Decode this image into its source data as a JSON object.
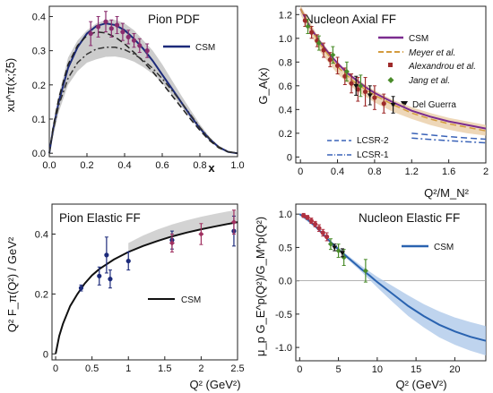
{
  "chart_data": [
    {
      "type": "line",
      "title": "Pion PDF",
      "xlabel": "x",
      "ylabel": "xu^π(x;ζ5)",
      "xlim": [
        0,
        1
      ],
      "ylim": [
        -0.01,
        0.43
      ],
      "xticks": [
        0,
        0.2,
        0.4,
        0.6,
        0.8,
        1.0
      ],
      "xtick_labels": [
        "0.0",
        "0.2",
        "0.4",
        "0.6",
        "0.8",
        "1.0"
      ],
      "yticks": [
        0,
        0.1,
        0.2,
        0.3,
        0.4
      ],
      "ytick_labels": [
        "0.0",
        "0.1",
        "0.2",
        "0.3",
        "0.4"
      ],
      "legend_position": "top-right",
      "legend": [
        {
          "name": "CSM",
          "color": "#1c2a7a",
          "style": "line"
        }
      ],
      "series": [
        {
          "name": "CSM",
          "color": "#1c2a7a",
          "style": "solid",
          "x": [
            0,
            0.02,
            0.05,
            0.1,
            0.15,
            0.2,
            0.25,
            0.3,
            0.35,
            0.4,
            0.45,
            0.5,
            0.55,
            0.6,
            0.65,
            0.7,
            0.75,
            0.8,
            0.85,
            0.9,
            0.95,
            1.0
          ],
          "y": [
            0,
            0.07,
            0.15,
            0.25,
            0.31,
            0.35,
            0.372,
            0.38,
            0.375,
            0.36,
            0.335,
            0.305,
            0.27,
            0.23,
            0.19,
            0.15,
            0.11,
            0.073,
            0.042,
            0.018,
            0.004,
            0
          ]
        },
        {
          "name": "",
          "color": "#222222",
          "style": "dashed",
          "x": [
            0,
            0.02,
            0.05,
            0.1,
            0.15,
            0.2,
            0.25,
            0.3,
            0.35,
            0.4,
            0.45,
            0.5,
            0.55,
            0.6,
            0.65,
            0.7,
            0.75,
            0.8,
            0.85,
            0.9,
            0.95,
            1.0
          ],
          "y": [
            0,
            0.075,
            0.16,
            0.26,
            0.315,
            0.345,
            0.355,
            0.352,
            0.34,
            0.32,
            0.295,
            0.268,
            0.238,
            0.205,
            0.17,
            0.135,
            0.1,
            0.067,
            0.038,
            0.016,
            0.004,
            0
          ]
        },
        {
          "name": "",
          "color": "#333333",
          "style": "dashdot",
          "x": [
            0,
            0.02,
            0.05,
            0.1,
            0.15,
            0.2,
            0.25,
            0.3,
            0.35,
            0.4,
            0.45,
            0.5,
            0.55,
            0.6,
            0.65,
            0.7,
            0.75,
            0.8,
            0.85,
            0.9,
            0.95,
            1.0
          ],
          "y": [
            0,
            0.065,
            0.14,
            0.22,
            0.265,
            0.29,
            0.305,
            0.31,
            0.31,
            0.303,
            0.29,
            0.272,
            0.248,
            0.218,
            0.185,
            0.15,
            0.113,
            0.076,
            0.044,
            0.019,
            0.005,
            0
          ]
        }
      ],
      "band": {
        "color": "#bbbbbb",
        "x": [
          0,
          0.05,
          0.1,
          0.15,
          0.2,
          0.25,
          0.3,
          0.35,
          0.4,
          0.45,
          0.5,
          0.55,
          0.6,
          0.65,
          0.7,
          0.75,
          0.8,
          0.85,
          0.9,
          0.95,
          1.0
        ],
        "lower": [
          0,
          0.12,
          0.2,
          0.24,
          0.265,
          0.275,
          0.282,
          0.283,
          0.278,
          0.268,
          0.252,
          0.232,
          0.205,
          0.172,
          0.138,
          0.102,
          0.067,
          0.037,
          0.015,
          0.003,
          0
        ],
        "upper": [
          0,
          0.17,
          0.28,
          0.33,
          0.36,
          0.38,
          0.39,
          0.39,
          0.38,
          0.36,
          0.33,
          0.3,
          0.26,
          0.215,
          0.17,
          0.127,
          0.085,
          0.049,
          0.021,
          0.005,
          0
        ]
      },
      "points": {
        "color": "#8a2c6e",
        "x": [
          0.22,
          0.26,
          0.3,
          0.33,
          0.36,
          0.39,
          0.42,
          0.45,
          0.48,
          0.52
        ],
        "y": [
          0.35,
          0.37,
          0.385,
          0.365,
          0.375,
          0.355,
          0.34,
          0.33,
          0.315,
          0.3
        ],
        "err": [
          0.035,
          0.03,
          0.03,
          0.025,
          0.025,
          0.025,
          0.02,
          0.02,
          0.02,
          0.02
        ]
      }
    },
    {
      "type": "line",
      "title": "Nucleon Axial FF",
      "xlabel": "Q²/M_N²",
      "ylabel": "G_A(x)",
      "xlim": [
        -0.05,
        2.0
      ],
      "ylim": [
        -0.05,
        1.27
      ],
      "xticks": [
        0,
        0.4,
        0.8,
        1.2,
        1.6,
        2.0
      ],
      "xtick_labels": [
        "0",
        "0.4",
        "0.8",
        "1.2",
        "1.6",
        "2"
      ],
      "yticks": [
        0,
        0.2,
        0.4,
        0.6,
        0.8,
        1.0,
        1.2
      ],
      "ytick_labels": [
        "0",
        "0.2",
        "0.4",
        "0.6",
        "0.8",
        "1.0",
        "1.2"
      ],
      "legend_position": "top-right",
      "legend": [
        {
          "name": "CSM",
          "color": "#7b2c8f",
          "style": "line"
        },
        {
          "name": "Meyer et al.",
          "color": "#d39b3e",
          "style": "dashed"
        },
        {
          "name": "Alexandrou et al.",
          "color": "#9e2a2a",
          "style": "square"
        },
        {
          "name": "Jang et al.",
          "color": "#4a8c2a",
          "style": "diamond"
        }
      ],
      "extra_labels": [
        "Del Guerra",
        "LCSR-2",
        "LCSR-1"
      ],
      "series": [
        {
          "name": "CSM",
          "color": "#7b2c8f",
          "style": "solid",
          "x": [
            0,
            0.1,
            0.2,
            0.3,
            0.4,
            0.5,
            0.6,
            0.7,
            0.8,
            0.9,
            1.0,
            1.2,
            1.4,
            1.6,
            1.8,
            2.0
          ],
          "y": [
            1.25,
            1.1,
            0.98,
            0.88,
            0.79,
            0.71,
            0.65,
            0.59,
            0.54,
            0.5,
            0.46,
            0.39,
            0.34,
            0.3,
            0.27,
            0.24
          ]
        },
        {
          "name": "Meyer et al.",
          "color": "#d39b3e",
          "style": "dashed",
          "x": [
            0,
            0.2,
            0.4,
            0.6,
            0.8,
            1.0,
            1.2,
            1.4,
            1.6,
            1.8,
            2.0
          ],
          "y": [
            1.25,
            0.96,
            0.76,
            0.62,
            0.52,
            0.44,
            0.37,
            0.32,
            0.28,
            0.25,
            0.22
          ]
        },
        {
          "name": "LCSR-2",
          "color": "#3a63b8",
          "style": "dashed",
          "x": [
            1.2,
            1.4,
            1.6,
            1.8,
            2.0
          ],
          "y": [
            0.2,
            0.185,
            0.172,
            0.16,
            0.15
          ]
        },
        {
          "name": "LCSR-1",
          "color": "#3a63b8",
          "style": "dashdot",
          "x": [
            1.2,
            1.4,
            1.6,
            1.8,
            2.0
          ],
          "y": [
            0.16,
            0.148,
            0.138,
            0.128,
            0.12
          ]
        }
      ],
      "band": {
        "color": "#e8c9a0",
        "x": [
          0,
          0.2,
          0.4,
          0.6,
          0.8,
          1.0,
          1.2,
          1.4,
          1.6,
          1.8,
          2.0
        ],
        "lower": [
          1.2,
          0.9,
          0.7,
          0.56,
          0.46,
          0.38,
          0.32,
          0.27,
          0.23,
          0.2,
          0.18
        ],
        "upper": [
          1.28,
          1.0,
          0.8,
          0.66,
          0.56,
          0.48,
          0.42,
          0.37,
          0.33,
          0.3,
          0.27
        ]
      },
      "points": {
        "color": "#9e2a2a",
        "x": [
          0.05,
          0.12,
          0.18,
          0.25,
          0.32,
          0.4,
          0.48,
          0.55,
          0.62,
          0.7,
          0.8,
          0.9
        ],
        "y": [
          1.15,
          1.05,
          0.98,
          0.9,
          0.82,
          0.77,
          0.68,
          0.62,
          0.57,
          0.55,
          0.5,
          0.45
        ],
        "err": [
          0.05,
          0.05,
          0.05,
          0.06,
          0.06,
          0.07,
          0.07,
          0.08,
          0.1,
          0.12,
          0.1,
          0.08
        ]
      },
      "points2": {
        "color": "#4a8c2a",
        "x": [
          0.08,
          0.2,
          0.35,
          0.5,
          0.65
        ],
        "y": [
          1.1,
          0.96,
          0.86,
          0.72,
          0.6
        ],
        "err": [
          0.06,
          0.06,
          0.07,
          0.08,
          0.09
        ]
      },
      "points3": {
        "color": "#111111",
        "x": [
          0.6,
          0.75,
          1.0
        ],
        "y": [
          0.6,
          0.52,
          0.44
        ],
        "err": [
          0.08,
          0.08,
          0.07
        ]
      }
    },
    {
      "type": "line",
      "title": "Pion Elastic FF",
      "xlabel": "Q² (GeV²)",
      "ylabel": "Q² F_π(Q²) / GeV²",
      "xlim": [
        -0.05,
        2.5
      ],
      "ylim": [
        -0.02,
        0.5
      ],
      "xticks": [
        0,
        0.5,
        1,
        1.5,
        2,
        2.5
      ],
      "xtick_labels": [
        "0",
        "0.5",
        "1",
        "1.5",
        "2",
        "2.5"
      ],
      "yticks": [
        0,
        0.2,
        0.4
      ],
      "ytick_labels": [
        "0",
        "0.2",
        "0.4"
      ],
      "legend_position": "center-right",
      "legend": [
        {
          "name": "CSM",
          "color": "#111111",
          "style": "line"
        }
      ],
      "series": [
        {
          "name": "CSM",
          "color": "#111111",
          "style": "solid",
          "x": [
            0,
            0.05,
            0.1,
            0.2,
            0.3,
            0.4,
            0.5,
            0.6,
            0.8,
            1.0,
            1.2,
            1.4,
            1.6,
            1.8,
            2.0,
            2.2,
            2.5
          ],
          "y": [
            0,
            0.06,
            0.1,
            0.16,
            0.2,
            0.235,
            0.262,
            0.283,
            0.315,
            0.34,
            0.36,
            0.377,
            0.392,
            0.405,
            0.416,
            0.426,
            0.44
          ]
        }
      ],
      "band": {
        "color": "#c4c4c4",
        "x": [
          1.0,
          1.2,
          1.4,
          1.6,
          1.8,
          2.0,
          2.2,
          2.4,
          2.5
        ],
        "lower": [
          0.34,
          0.36,
          0.377,
          0.392,
          0.405,
          0.416,
          0.426,
          0.435,
          0.44
        ],
        "upper": [
          0.37,
          0.395,
          0.415,
          0.432,
          0.446,
          0.458,
          0.468,
          0.477,
          0.481
        ]
      },
      "points": {
        "color": "#1c2a7a",
        "x": [
          0.35,
          0.6,
          0.7,
          0.75,
          1.0,
          1.6,
          2.45
        ],
        "y": [
          0.22,
          0.26,
          0.33,
          0.25,
          0.31,
          0.38,
          0.41
        ],
        "err": [
          0.01,
          0.03,
          0.06,
          0.03,
          0.03,
          0.03,
          0.05
        ]
      },
      "points2": {
        "color": "#a03060",
        "x": [
          1.6,
          2.0,
          2.45
        ],
        "y": [
          0.37,
          0.4,
          0.44
        ],
        "err": [
          0.03,
          0.035,
          0.04
        ]
      }
    },
    {
      "type": "line",
      "title": "Nucleon Elastic FF",
      "xlabel": "Q² (GeV²)",
      "ylabel": "μ_p G_E^p(Q²)/G_M^p(Q²)",
      "xlim": [
        -0.5,
        24
      ],
      "ylim": [
        -1.2,
        1.15
      ],
      "xticks": [
        0,
        5,
        10,
        15,
        20
      ],
      "xtick_labels": [
        "0",
        "5",
        "10",
        "15",
        "20"
      ],
      "yticks": [
        1.0,
        0.5,
        0,
        -0.5,
        -1.0
      ],
      "ytick_labels": [
        "1.0",
        "0.5",
        "0.0",
        "-0.5",
        "-1.0"
      ],
      "legend_position": "top-right",
      "legend": [
        {
          "name": "CSM",
          "color": "#2a63b0",
          "style": "line"
        }
      ],
      "series": [
        {
          "name": "CSM",
          "color": "#2a63b0",
          "style": "solid",
          "x": [
            0,
            1,
            2,
            3,
            4,
            5,
            6,
            7,
            8,
            9,
            10,
            12,
            14,
            16,
            18,
            20,
            22,
            24
          ],
          "y": [
            1.0,
            0.92,
            0.82,
            0.7,
            0.58,
            0.47,
            0.37,
            0.27,
            0.17,
            0.08,
            -0.02,
            -0.2,
            -0.38,
            -0.53,
            -0.66,
            -0.76,
            -0.84,
            -0.9
          ]
        }
      ],
      "band": {
        "color": "#a9c6e8",
        "x": [
          0,
          2,
          4,
          6,
          8,
          10,
          12,
          14,
          16,
          18,
          20,
          22,
          24
        ],
        "lower": [
          0.98,
          0.8,
          0.56,
          0.34,
          0.13,
          -0.1,
          -0.32,
          -0.53,
          -0.7,
          -0.85,
          -0.96,
          -1.05,
          -1.12
        ],
        "upper": [
          1.02,
          0.84,
          0.6,
          0.4,
          0.22,
          0.06,
          -0.08,
          -0.22,
          -0.35,
          -0.46,
          -0.55,
          -0.62,
          -0.68
        ]
      },
      "points": {
        "color": "#b03040",
        "x": [
          0.5,
          1.0,
          1.5,
          2.0,
          2.5,
          3.0,
          3.5
        ],
        "y": [
          0.98,
          0.95,
          0.9,
          0.85,
          0.79,
          0.72,
          0.66
        ],
        "err": [
          0.03,
          0.03,
          0.04,
          0.04,
          0.05,
          0.05,
          0.06
        ]
      },
      "points2": {
        "color": "#4a8c2a",
        "x": [
          4.0,
          5.0,
          5.7,
          8.5
        ],
        "y": [
          0.55,
          0.45,
          0.35,
          0.15
        ],
        "err": [
          0.08,
          0.1,
          0.12,
          0.17
        ]
      },
      "points3": {
        "color": "#111111",
        "x": [
          4.5,
          5.5
        ],
        "y": [
          0.5,
          0.42
        ],
        "err": [
          0.05,
          0.06
        ]
      }
    }
  ]
}
